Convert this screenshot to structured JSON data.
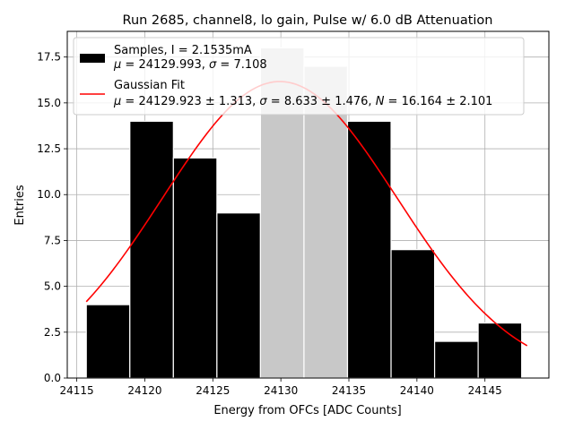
{
  "chart_data": {
    "type": "bar",
    "title": "Run 2685, channel8, lo gain, Pulse w/ 6.0 dB Attenuation",
    "xlabel": "Energy from OFCs [ADC Counts]",
    "ylabel": "Entries",
    "xlim": [
      24114.3,
      24149.7
    ],
    "ylim": [
      0,
      18.9
    ],
    "grid": true,
    "legend_position": "top-left",
    "x_ticks": [
      24115,
      24120,
      24125,
      24130,
      24135,
      24140,
      24145
    ],
    "y_ticks": [
      0.0,
      2.5,
      5.0,
      7.5,
      10.0,
      12.5,
      15.0,
      17.5
    ],
    "x_tick_labels": [
      "24115",
      "24120",
      "24125",
      "24130",
      "24135",
      "24140",
      "24145"
    ],
    "y_tick_labels": [
      "0.0",
      "2.5",
      "5.0",
      "7.5",
      "10.0",
      "12.5",
      "15.0",
      "17.5"
    ],
    "bins": [
      {
        "x0": 24115.7,
        "x1": 24118.9,
        "value": 4,
        "color": "#000000"
      },
      {
        "x0": 24118.9,
        "x1": 24122.1,
        "value": 14,
        "color": "#000000"
      },
      {
        "x0": 24122.1,
        "x1": 24125.3,
        "value": 12,
        "color": "#000000"
      },
      {
        "x0": 24125.3,
        "x1": 24128.5,
        "value": 9,
        "color": "#000000"
      },
      {
        "x0": 24128.5,
        "x1": 24131.7,
        "value": 18,
        "color": "#c8c8c8"
      },
      {
        "x0": 24131.7,
        "x1": 24134.9,
        "value": 17,
        "color": "#c8c8c8"
      },
      {
        "x0": 24134.9,
        "x1": 24138.1,
        "value": 14,
        "color": "#000000"
      },
      {
        "x0": 24138.1,
        "x1": 24141.3,
        "value": 7,
        "color": "#000000"
      },
      {
        "x0": 24141.3,
        "x1": 24144.5,
        "value": 2,
        "color": "#000000"
      },
      {
        "x0": 24144.5,
        "x1": 24147.7,
        "value": 3,
        "color": "#000000"
      }
    ],
    "fit": {
      "mu": 24129.923,
      "sigma": 8.633,
      "amplitude": 16.164,
      "x_range": [
        24115.7,
        24148.1
      ],
      "color": "#ff0000"
    },
    "legend": {
      "samples_line1": "Samples, I = 2.1535mA",
      "samples_mu": "24129.993",
      "samples_sigma": "7.108",
      "fit_line1": "Gaussian Fit",
      "fit_mu": "24129.923 ± 1.313",
      "fit_sigma": "8.633 ± 1.476",
      "fit_N": "16.164 ± 2.101"
    }
  }
}
